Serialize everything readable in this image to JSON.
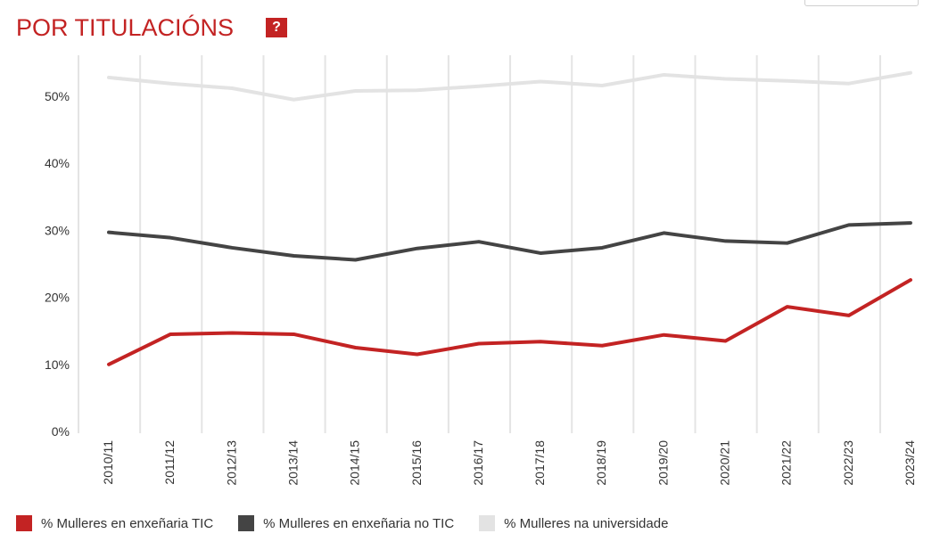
{
  "header": {
    "title": "POR TITULACIÓNS",
    "help_label": "?"
  },
  "chart_data": {
    "type": "line",
    "categories": [
      "2010/11",
      "2011/12",
      "2012/13",
      "2013/14",
      "2014/15",
      "2015/16",
      "2016/17",
      "2017/18",
      "2018/19",
      "2019/20",
      "2020/21",
      "2021/22",
      "2022/23",
      "2023/24"
    ],
    "y_ticks": [
      "0%",
      "10%",
      "20%",
      "30%",
      "40%",
      "50%"
    ],
    "ylim": [
      0,
      56
    ],
    "grid": "vertical",
    "legend_position": "bottom",
    "series": [
      {
        "name": "% Mulleres en enxeñaria TIC",
        "color": "#c32323",
        "values": [
          10.0,
          14.5,
          14.7,
          14.5,
          12.5,
          11.5,
          13.1,
          13.4,
          12.8,
          14.4,
          13.5,
          18.6,
          17.3,
          22.6
        ]
      },
      {
        "name": "% Mulleres en enxeñaria no TIC",
        "color": "#444444",
        "values": [
          29.7,
          28.9,
          27.4,
          26.2,
          25.6,
          27.3,
          28.3,
          26.6,
          27.4,
          29.6,
          28.4,
          28.1,
          30.8,
          31.1
        ]
      },
      {
        "name": "% Mulleres na universidade",
        "color": "#e3e3e3",
        "values": [
          52.8,
          51.9,
          51.2,
          49.5,
          50.8,
          50.9,
          51.5,
          52.2,
          51.6,
          53.2,
          52.6,
          52.3,
          51.9,
          53.5
        ]
      }
    ]
  }
}
